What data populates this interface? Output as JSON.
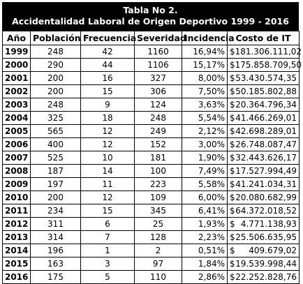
{
  "title": {
    "line1": "Tabla No 2.",
    "line2": "Accidentalidad Laboral de Origen Deportivo 1999 - 2016"
  },
  "headers": [
    "Año",
    "Población",
    "Frecuencia",
    "Severidad",
    "Incidencia",
    "Costo de IT"
  ],
  "currency_symbol": "$",
  "rows": [
    {
      "year": "1999",
      "poblacion": "248",
      "frecuencia": "42",
      "severidad": "1160",
      "incidencia": "16,94%",
      "costo": "181.306.111,02"
    },
    {
      "year": "2000",
      "poblacion": "290",
      "frecuencia": "44",
      "severidad": "1106",
      "incidencia": "15,17%",
      "costo": "175.858.709,50"
    },
    {
      "year": "2001",
      "poblacion": "200",
      "frecuencia": "16",
      "severidad": "327",
      "incidencia": "8,00%",
      "costo": "53.430.574,35"
    },
    {
      "year": "2002",
      "poblacion": "200",
      "frecuencia": "15",
      "severidad": "306",
      "incidencia": "7,50%",
      "costo": "50.185.802,88"
    },
    {
      "year": "2003",
      "poblacion": "248",
      "frecuencia": "9",
      "severidad": "124",
      "incidencia": "3,63%",
      "costo": "20.364.796,34"
    },
    {
      "year": "2004",
      "poblacion": "325",
      "frecuencia": "18",
      "severidad": "248",
      "incidencia": "5,54%",
      "costo": "41.466.269,01"
    },
    {
      "year": "2005",
      "poblacion": "565",
      "frecuencia": "12",
      "severidad": "249",
      "incidencia": "2,12%",
      "costo": "42.698.289,01"
    },
    {
      "year": "2006",
      "poblacion": "400",
      "frecuencia": "12",
      "severidad": "152",
      "incidencia": "3,00%",
      "costo": "26.748.087,47"
    },
    {
      "year": "2007",
      "poblacion": "525",
      "frecuencia": "10",
      "severidad": "181",
      "incidencia": "1,90%",
      "costo": "32.443.626,17"
    },
    {
      "year": "2008",
      "poblacion": "187",
      "frecuencia": "14",
      "severidad": "100",
      "incidencia": "7,49%",
      "costo": "17.527.994,49"
    },
    {
      "year": "2009",
      "poblacion": "197",
      "frecuencia": "11",
      "severidad": "223",
      "incidencia": "5,58%",
      "costo": "41.241.034,31"
    },
    {
      "year": "2010",
      "poblacion": "200",
      "frecuencia": "12",
      "severidad": "109",
      "incidencia": "6,00%",
      "costo": "20.080.682,99"
    },
    {
      "year": "2011",
      "poblacion": "234",
      "frecuencia": "15",
      "severidad": "345",
      "incidencia": "6,41%",
      "costo": "64.372.018,52"
    },
    {
      "year": "2012",
      "poblacion": "311",
      "frecuencia": "6",
      "severidad": "25",
      "incidencia": "1,93%",
      "costo": "4.771.138,93"
    },
    {
      "year": "2013",
      "poblacion": "314",
      "frecuencia": "7",
      "severidad": "128",
      "incidencia": "2,23%",
      "costo": "25.506.635,95"
    },
    {
      "year": "2014",
      "poblacion": "196",
      "frecuencia": "1",
      "severidad": "2",
      "incidencia": "0,51%",
      "costo": "409.679,02"
    },
    {
      "year": "2015",
      "poblacion": "163",
      "frecuencia": "3",
      "severidad": "97",
      "incidencia": "1,84%",
      "costo": "19.539.998,44"
    },
    {
      "year": "2016",
      "poblacion": "175",
      "frecuencia": "5",
      "severidad": "110",
      "incidencia": "2,86%",
      "costo": "22.252.828,76"
    }
  ]
}
